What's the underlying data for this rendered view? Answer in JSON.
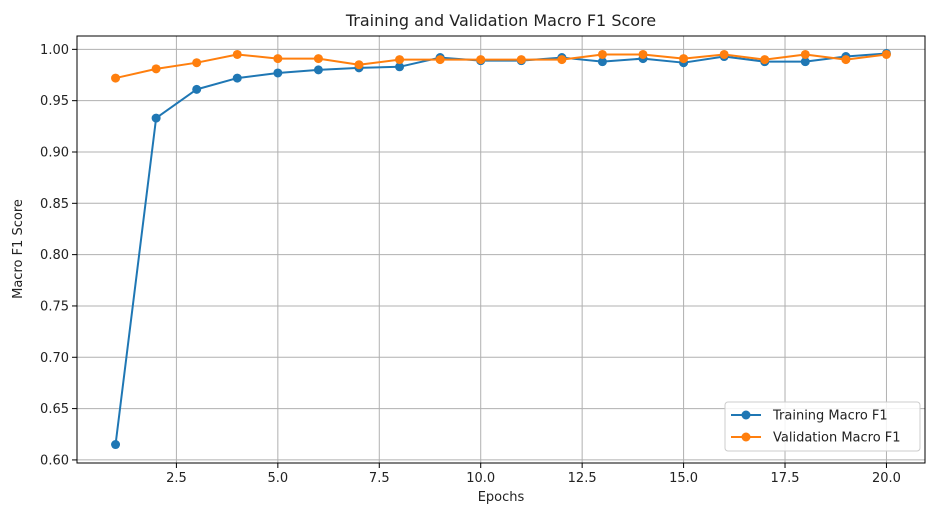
{
  "chart_data": {
    "type": "line",
    "title": "Training and Validation Macro F1 Score",
    "xlabel": "Epochs",
    "ylabel": "Macro F1 Score",
    "xlim": [
      0.05,
      20.95
    ],
    "ylim": [
      0.597,
      1.013
    ],
    "xticks": [
      2.5,
      5.0,
      7.5,
      10.0,
      12.5,
      15.0,
      17.5,
      20.0
    ],
    "xtick_labels": [
      "2.5",
      "5.0",
      "7.5",
      "10.0",
      "12.5",
      "15.0",
      "17.5",
      "20.0"
    ],
    "yticks": [
      0.6,
      0.65,
      0.7,
      0.75,
      0.8,
      0.85,
      0.9,
      0.95,
      1.0
    ],
    "ytick_labels": [
      "0.60",
      "0.65",
      "0.70",
      "0.75",
      "0.80",
      "0.85",
      "0.90",
      "0.95",
      "1.00"
    ],
    "grid": true,
    "legend_position": "bottom-right",
    "x": [
      1,
      2,
      3,
      4,
      5,
      6,
      7,
      8,
      9,
      10,
      11,
      12,
      13,
      14,
      15,
      16,
      17,
      18,
      19,
      20
    ],
    "series": [
      {
        "name": "Training Macro F1",
        "color": "#1f77b4",
        "values": [
          0.615,
          0.933,
          0.961,
          0.972,
          0.977,
          0.98,
          0.982,
          0.983,
          0.992,
          0.989,
          0.989,
          0.992,
          0.988,
          0.991,
          0.987,
          0.993,
          0.988,
          0.988,
          0.993,
          0.996
        ]
      },
      {
        "name": "Validation Macro F1",
        "color": "#ff7f0e",
        "values": [
          0.972,
          0.981,
          0.987,
          0.995,
          0.991,
          0.991,
          0.985,
          0.99,
          0.99,
          0.99,
          0.99,
          0.99,
          0.995,
          0.995,
          0.991,
          0.995,
          0.99,
          0.995,
          0.99,
          0.995
        ]
      }
    ]
  }
}
